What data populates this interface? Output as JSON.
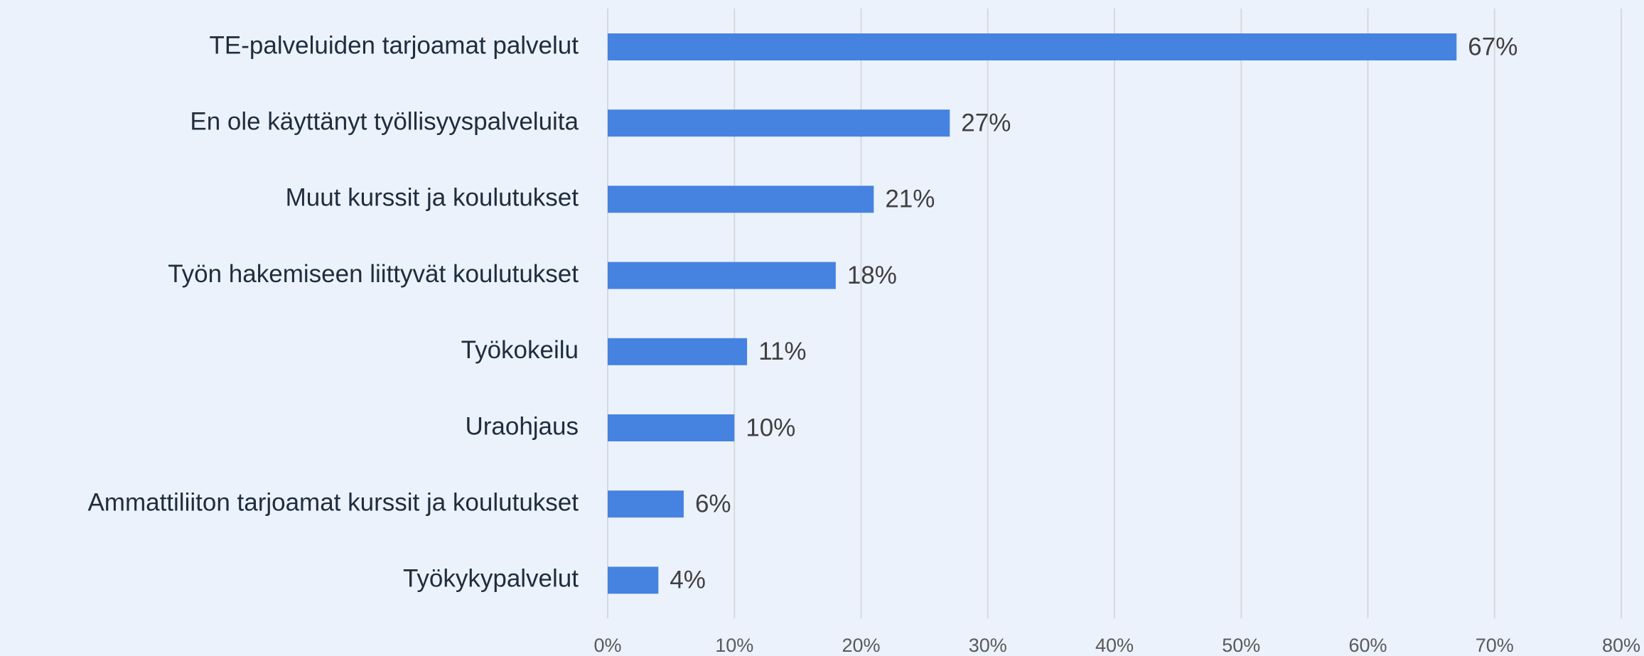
{
  "chart_data": {
    "type": "bar",
    "orientation": "horizontal",
    "categories": [
      "TE-palveluiden tarjoamat palvelut",
      "En ole käyttänyt työllisyyspalveluita",
      "Muut kurssit ja koulutukset",
      "Työn hakemiseen liittyvät koulutukset",
      "Työkokeilu",
      "Uraohjaus",
      "Ammattiliiton tarjoamat kurssit ja koulutukset",
      "Työkykypalvelut"
    ],
    "values": [
      67,
      27,
      21,
      18,
      11,
      10,
      6,
      4
    ],
    "value_labels": [
      "67%",
      "27%",
      "21%",
      "18%",
      "11%",
      "10%",
      "6%",
      "4%"
    ],
    "color": "#4682e0",
    "xlim": [
      0,
      80
    ],
    "xticks": [
      {
        "value": 0,
        "label": "0%"
      },
      {
        "value": 10,
        "label": "10%"
      },
      {
        "value": 20,
        "label": "20%"
      },
      {
        "value": 30,
        "label": "30%"
      },
      {
        "value": 40,
        "label": "40%"
      },
      {
        "value": 50,
        "label": "50%"
      },
      {
        "value": 60,
        "label": "60%"
      },
      {
        "value": 70,
        "label": "70%"
      },
      {
        "value": 80,
        "label": "80%"
      }
    ],
    "grid": true
  }
}
